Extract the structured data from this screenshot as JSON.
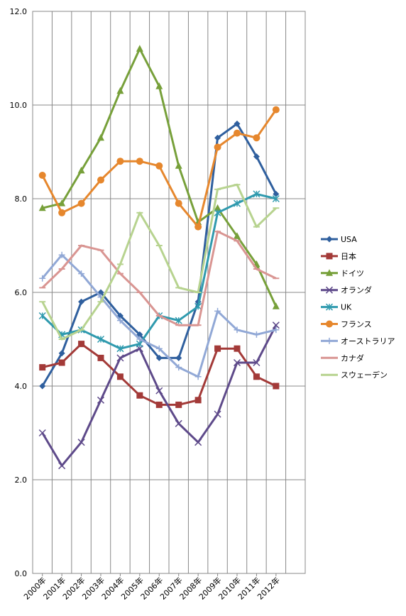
{
  "chart_data": {
    "type": "line",
    "title": "",
    "xlabel": "",
    "ylabel": "",
    "ylim": [
      0,
      12
    ],
    "yticks": [
      "0.0",
      "2.0",
      "4.0",
      "6.0",
      "8.0",
      "10.0",
      "12.0"
    ],
    "grid": true,
    "legend_position": "right",
    "categories": [
      "2000年",
      "2001年",
      "2002年",
      "2003年",
      "2004年",
      "2005年",
      "2006年",
      "2007年",
      "2008年",
      "2009年",
      "2010年",
      "2011年",
      "2012年"
    ],
    "series": [
      {
        "name": "USA",
        "color": "#2F5F9E",
        "marker": "diamond",
        "values": [
          4.0,
          4.7,
          5.8,
          6.0,
          5.5,
          5.1,
          4.6,
          4.6,
          5.8,
          9.3,
          9.6,
          8.9,
          8.1
        ]
      },
      {
        "name": "日本",
        "color": "#A33A38",
        "marker": "square",
        "values": [
          4.4,
          4.5,
          4.9,
          4.6,
          4.2,
          3.8,
          3.6,
          3.6,
          3.7,
          4.8,
          4.8,
          4.2,
          4.0
        ]
      },
      {
        "name": "ドイツ",
        "color": "#77A03A",
        "marker": "triangle",
        "values": [
          7.8,
          7.9,
          8.6,
          9.3,
          10.3,
          11.2,
          10.4,
          8.7,
          7.5,
          7.8,
          7.2,
          6.6,
          5.7
        ]
      },
      {
        "name": "オランダ",
        "color": "#5E4A8A",
        "marker": "x",
        "values": [
          3.0,
          2.3,
          2.8,
          3.7,
          4.6,
          4.8,
          3.9,
          3.2,
          2.8,
          3.4,
          4.5,
          4.5,
          5.3
        ]
      },
      {
        "name": "UK",
        "color": "#2F9AAE",
        "marker": "asterisk",
        "values": [
          5.5,
          5.1,
          5.2,
          5.0,
          4.8,
          4.9,
          5.5,
          5.4,
          5.7,
          7.7,
          7.9,
          8.1,
          8.0
        ]
      },
      {
        "name": "フランス",
        "color": "#E6872D",
        "marker": "circle",
        "values": [
          8.5,
          7.7,
          7.9,
          8.4,
          8.8,
          8.8,
          8.7,
          7.9,
          7.4,
          9.1,
          9.4,
          9.3,
          9.9
        ]
      },
      {
        "name": "オーストラリア",
        "color": "#91A8D6",
        "marker": "plus",
        "values": [
          6.3,
          6.8,
          6.4,
          5.9,
          5.4,
          5.0,
          4.8,
          4.4,
          4.2,
          5.6,
          5.2,
          5.1,
          5.2
        ]
      },
      {
        "name": "カナダ",
        "color": "#D99592",
        "marker": "dash",
        "values": [
          6.1,
          6.5,
          7.0,
          6.9,
          6.4,
          6.0,
          5.5,
          5.3,
          5.3,
          7.3,
          7.1,
          6.5,
          6.3
        ]
      },
      {
        "name": "スウェーデン",
        "color": "#B7D38F",
        "marker": "dash",
        "values": [
          5.8,
          5.0,
          5.2,
          5.8,
          6.6,
          7.7,
          7.0,
          6.1,
          6.0,
          8.2,
          8.3,
          7.4,
          7.8
        ]
      }
    ]
  }
}
